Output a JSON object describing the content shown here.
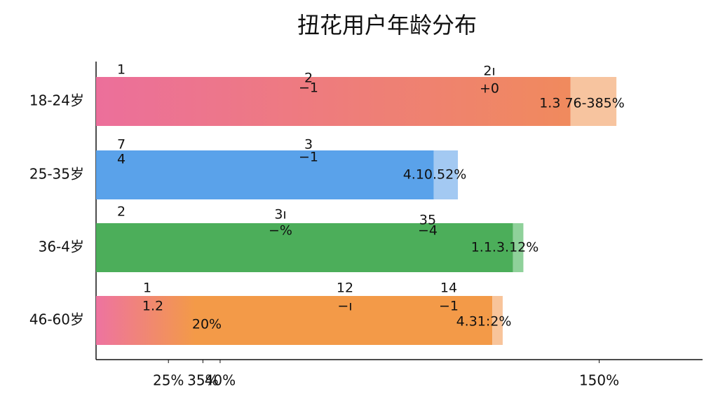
{
  "chart_data": {
    "type": "hbar",
    "title": "扭花用户年龄分布",
    "categories": [
      "18-24岁",
      "25-35岁",
      "36-4岁",
      "46-60岁"
    ],
    "series": [
      {
        "colors": [
          "#ec7590",
          "#5aa2ea",
          "#4cae5a",
          "#f39a48"
        ],
        "values": [
          137.7,
          98,
          121,
          115
        ]
      },
      {
        "colors": [
          "#f7c49f",
          "#a3c9f2",
          "#8fd19a",
          "#f8c49a"
        ],
        "values": [
          13.3,
          7,
          3,
          3
        ]
      }
    ],
    "xlim": [
      4,
      180
    ],
    "xticks": [
      {
        "value": 25,
        "label": "25%"
      },
      {
        "value": 35,
        "label": "35%"
      },
      {
        "value": 40,
        "label": "40%"
      },
      {
        "value": 150,
        "label": "150%"
      }
    ],
    "annotations": [
      [
        "1",
        "2",
        "−1",
        "2ı",
        "+0",
        "1.3 76-385%"
      ],
      [
        "7",
        "4",
        "3",
        "−1",
        "4.10.52%"
      ],
      [
        "2",
        "3ı",
        "−%",
        "35",
        "−4",
        "1.1.3.12%"
      ],
      [
        "1",
        "1.2",
        "20%",
        "12",
        "−ı",
        "14",
        "−1",
        "4.31:2%"
      ]
    ]
  }
}
